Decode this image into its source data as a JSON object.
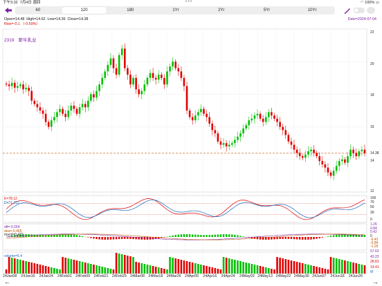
{
  "status_bar": {
    "time": "下午3:32",
    "date": "7月4日 週四",
    "dots": "•••",
    "battery": "100%"
  },
  "periods": [
    "60",
    "120",
    "180",
    "1Yr",
    "2Yr",
    "5Yr",
    "10Yr"
  ],
  "active_period": "120",
  "ohlc": {
    "open": "Open=14.48",
    "high": "High=14.62",
    "low": "Low=14.36",
    "close": "Close=14.38"
  },
  "rise": "Rise=-0.1 （-0.69%）",
  "date_label": "Date=2024-07-04",
  "stock": {
    "code": "2319",
    "name": "蒙牛乳业"
  },
  "price_axis": [
    "22",
    "20",
    "18",
    "16",
    "14.38",
    "14",
    "12"
  ],
  "kdj": {
    "k": "K=78.12",
    "d": "D=71.212",
    "axis": [
      "100",
      "70",
      "50",
      "30",
      "0"
    ]
  },
  "macd": {
    "dif": "dif=-0.254",
    "dea": "dea=-0.465",
    "macd": "macd=0.422",
    "axis": [
      "1.26",
      "0.84",
      "0.42",
      "0",
      "-0.42",
      "-0.84",
      "-1.26"
    ]
  },
  "volume": {
    "label": "volume=5.4",
    "axis": [
      "57.63",
      "43.22",
      "28.81",
      "14.41",
      "M"
    ]
  },
  "x_labels": [
    "24Jan08",
    "24Jan16",
    "24Jan24",
    "24Feb01",
    "24Feb09",
    "24Feb21",
    "24Feb29",
    "24Mar08",
    "24Mar18",
    "24Mar26",
    "24Apr05",
    "24Apr16",
    "24Apr24",
    "24May03",
    "24May13",
    "24May22",
    "24May30",
    "24Jun07",
    "24Jun18",
    "24Jun26"
  ],
  "colors": {
    "up": "#00c000",
    "down": "#e00000",
    "accent": "#7b1fa2",
    "ref_line": "#c05000"
  },
  "chart_data": {
    "type": "candlestick",
    "ylim": [
      12,
      22
    ],
    "last_close": 14.38,
    "closes": [
      18.6,
      18.5,
      18.7,
      18.4,
      18.5,
      18.6,
      18.3,
      18.4,
      18.2,
      17.6,
      17.4,
      17.2,
      17.0,
      16.8,
      16.3,
      16.0,
      16.4,
      16.6,
      16.9,
      17.1,
      16.8,
      16.6,
      17.0,
      17.3,
      17.1,
      16.8,
      17.2,
      17.4,
      17.2,
      17.6,
      18.0,
      17.8,
      18.2,
      18.6,
      19.0,
      19.4,
      19.8,
      20.2,
      19.6,
      19.2,
      20.4,
      20.8,
      19.6,
      19.2,
      18.6,
      19.0,
      18.3,
      18.0,
      18.2,
      18.6,
      19.0,
      19.3,
      19.0,
      18.9,
      19.2,
      19.0,
      18.6,
      19.4,
      19.7,
      20.0,
      19.6,
      19.4,
      19.0,
      18.5,
      17.0,
      16.6,
      16.4,
      16.7,
      16.9,
      17.1,
      16.8,
      16.6,
      16.2,
      15.8,
      15.6,
      15.1,
      14.9,
      15.0,
      14.8,
      14.9,
      15.0,
      15.2,
      15.4,
      15.6,
      15.9,
      16.1,
      16.4,
      16.5,
      16.7,
      16.8,
      16.5,
      16.3,
      16.6,
      16.9,
      16.7,
      16.5,
      16.3,
      16.0,
      15.8,
      15.5,
      15.1,
      14.9,
      14.6,
      14.4,
      14.2,
      14.1,
      14.3,
      14.5,
      14.6,
      14.4,
      14.2,
      13.9,
      13.7,
      13.5,
      13.2,
      13.0,
      13.3,
      13.6,
      13.9,
      14.0,
      13.8,
      14.2,
      14.6,
      14.4,
      14.2,
      14.5,
      14.6,
      14.38
    ]
  }
}
